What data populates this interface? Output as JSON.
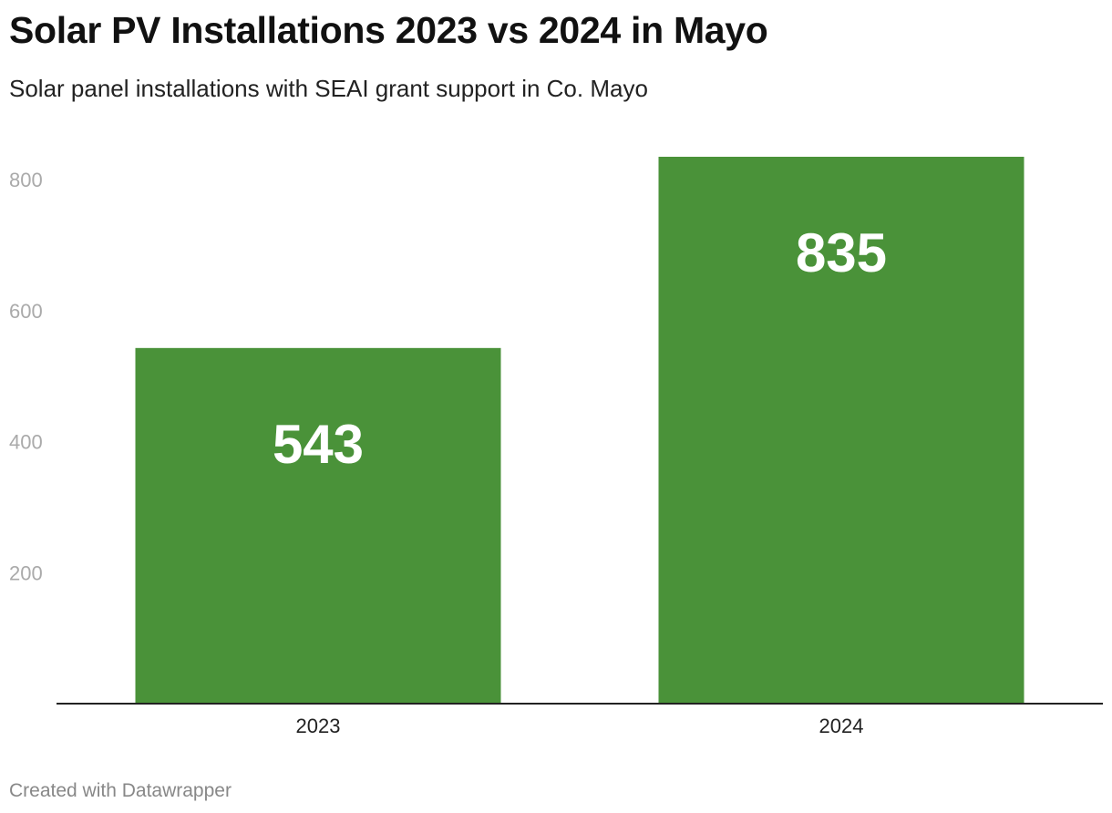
{
  "title": "Solar PV Installations 2023 vs 2024 in Mayo",
  "subtitle": "Solar panel installations with SEAI grant support in Co. Mayo",
  "footer": "Created with Datawrapper",
  "colors": {
    "bar": "#4a9239",
    "bar_label": "#ffffff",
    "tick_label": "#aaaaaa",
    "axis_label": "#222222",
    "baseline": "#222222"
  },
  "chart_data": {
    "type": "bar",
    "title": "Solar PV Installations 2023 vs 2024 in Mayo",
    "subtitle": "Solar panel installations with SEAI grant support in Co. Mayo",
    "xlabel": "",
    "ylabel": "",
    "categories": [
      "2023",
      "2024"
    ],
    "values": [
      543,
      835
    ],
    "ylim": [
      0,
      835
    ],
    "yticks": [
      200,
      400,
      600,
      800
    ],
    "grid": false,
    "legend": "none"
  }
}
